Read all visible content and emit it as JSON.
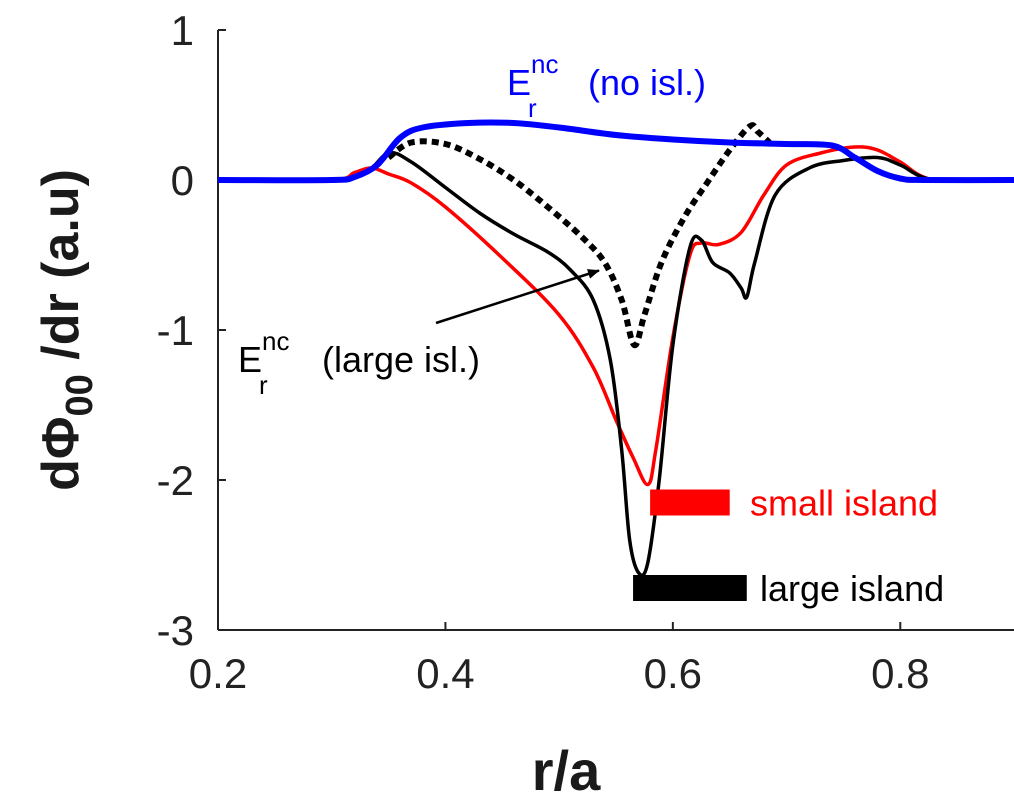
{
  "chart_data": {
    "type": "line",
    "xlabel": "r/a",
    "ylabel": {
      "pre": "d",
      "phi": "Φ",
      "sub": "00",
      "post": " /dr (a.u)"
    },
    "xlim": [
      0.2,
      0.9
    ],
    "ylim": [
      -3,
      1
    ],
    "xticks": [
      "0.2",
      "0.4",
      "0.6",
      "0.8"
    ],
    "yticks": [
      "-3",
      "-2",
      "-1",
      "0",
      "1"
    ],
    "grid": false,
    "series": [
      {
        "key": "red",
        "color": "#ff0000",
        "dash": false,
        "width": 3.5,
        "points": [
          [
            0.2,
            0
          ],
          [
            0.3,
            0
          ],
          [
            0.32,
            0.05
          ],
          [
            0.335,
            0.08
          ],
          [
            0.35,
            0.04
          ],
          [
            0.37,
            -0.02
          ],
          [
            0.4,
            -0.18
          ],
          [
            0.45,
            -0.52
          ],
          [
            0.5,
            -0.9
          ],
          [
            0.53,
            -1.25
          ],
          [
            0.55,
            -1.6
          ],
          [
            0.565,
            -1.85
          ],
          [
            0.578,
            -2.03
          ],
          [
            0.585,
            -1.8
          ],
          [
            0.6,
            -1.05
          ],
          [
            0.615,
            -0.5
          ],
          [
            0.625,
            -0.42
          ],
          [
            0.64,
            -0.43
          ],
          [
            0.66,
            -0.35
          ],
          [
            0.68,
            -0.1
          ],
          [
            0.7,
            0.1
          ],
          [
            0.73,
            0.18
          ],
          [
            0.76,
            0.22
          ],
          [
            0.78,
            0.2
          ],
          [
            0.8,
            0.12
          ],
          [
            0.83,
            0.0
          ],
          [
            0.9,
            0
          ]
        ]
      },
      {
        "key": "black",
        "color": "#000000",
        "dash": false,
        "width": 3.5,
        "points": [
          [
            0.2,
            0
          ],
          [
            0.3,
            0
          ],
          [
            0.33,
            0.05
          ],
          [
            0.35,
            0.18
          ],
          [
            0.37,
            0.12
          ],
          [
            0.4,
            -0.05
          ],
          [
            0.43,
            -0.22
          ],
          [
            0.46,
            -0.36
          ],
          [
            0.49,
            -0.48
          ],
          [
            0.51,
            -0.6
          ],
          [
            0.53,
            -0.8
          ],
          [
            0.545,
            -1.2
          ],
          [
            0.555,
            -1.8
          ],
          [
            0.562,
            -2.4
          ],
          [
            0.57,
            -2.62
          ],
          [
            0.578,
            -2.55
          ],
          [
            0.588,
            -2.0
          ],
          [
            0.6,
            -1.1
          ],
          [
            0.615,
            -0.45
          ],
          [
            0.625,
            -0.4
          ],
          [
            0.635,
            -0.55
          ],
          [
            0.65,
            -0.62
          ],
          [
            0.66,
            -0.72
          ],
          [
            0.665,
            -0.78
          ],
          [
            0.672,
            -0.55
          ],
          [
            0.69,
            -0.1
          ],
          [
            0.72,
            0.08
          ],
          [
            0.75,
            0.13
          ],
          [
            0.78,
            0.15
          ],
          [
            0.8,
            0.1
          ],
          [
            0.83,
            0.0
          ],
          [
            0.9,
            0
          ]
        ]
      },
      {
        "key": "dotted",
        "color": "#000000",
        "dash": true,
        "width": 6,
        "points": [
          [
            0.35,
            0.15
          ],
          [
            0.37,
            0.25
          ],
          [
            0.4,
            0.24
          ],
          [
            0.43,
            0.14
          ],
          [
            0.46,
            0.0
          ],
          [
            0.49,
            -0.18
          ],
          [
            0.52,
            -0.38
          ],
          [
            0.54,
            -0.55
          ],
          [
            0.555,
            -0.8
          ],
          [
            0.566,
            -1.1
          ],
          [
            0.575,
            -0.9
          ],
          [
            0.59,
            -0.55
          ],
          [
            0.61,
            -0.25
          ],
          [
            0.63,
            -0.02
          ],
          [
            0.65,
            0.2
          ],
          [
            0.668,
            0.36
          ],
          [
            0.675,
            0.32
          ],
          [
            0.685,
            0.25
          ]
        ]
      },
      {
        "key": "blue",
        "color": "#0000ff",
        "dash": false,
        "width": 6,
        "points": [
          [
            0.2,
            0
          ],
          [
            0.3,
            0
          ],
          [
            0.32,
            0.02
          ],
          [
            0.34,
            0.1
          ],
          [
            0.36,
            0.28
          ],
          [
            0.38,
            0.35
          ],
          [
            0.42,
            0.38
          ],
          [
            0.46,
            0.38
          ],
          [
            0.5,
            0.35
          ],
          [
            0.55,
            0.3
          ],
          [
            0.6,
            0.27
          ],
          [
            0.65,
            0.25
          ],
          [
            0.7,
            0.24
          ],
          [
            0.74,
            0.23
          ],
          [
            0.76,
            0.15
          ],
          [
            0.78,
            0.06
          ],
          [
            0.8,
            0.01
          ],
          [
            0.82,
            0.0
          ],
          [
            0.9,
            0
          ]
        ]
      }
    ],
    "annotations": {
      "blue_label": {
        "main": "E",
        "sup": "nc",
        "sub": "r",
        "rest": "(no isl.)",
        "color": "#0000ff"
      },
      "black_label": {
        "main": "E",
        "sup": "nc",
        "sub": "r",
        "rest": "(large isl.)",
        "color": "#000000",
        "arrow_to": [
          0.535,
          -0.55
        ]
      },
      "small_island": {
        "text": "small island",
        "color": "#ff0000",
        "bar_x": [
          0.58,
          0.65
        ],
        "bar_y": -2.15
      },
      "large_island": {
        "text": "large island",
        "color": "#000000",
        "bar_x": [
          0.565,
          0.665
        ],
        "bar_y": -2.72
      }
    }
  }
}
